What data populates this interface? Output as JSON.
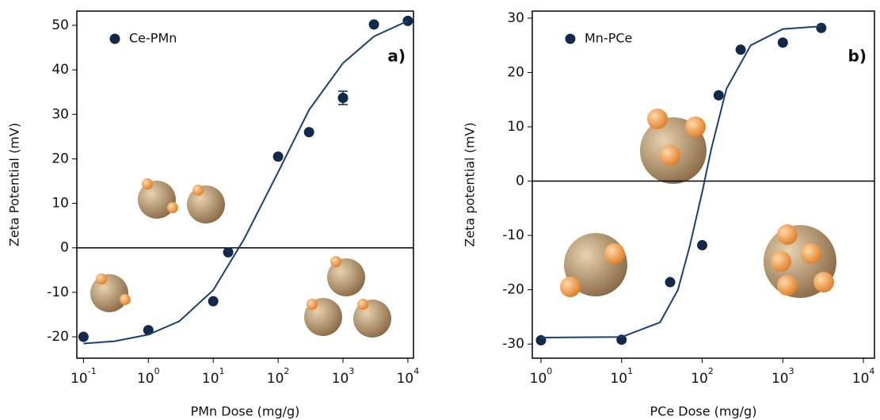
{
  "chart_data": [
    {
      "type": "scatter",
      "panel_label": "a)",
      "xlabel": "PMn Dose (mg/g)",
      "ylabel": "Zeta Potential (mV)",
      "xscale": "log",
      "xlim": [
        0.079,
        12200
      ],
      "ylim": [
        -24.8,
        53.2
      ],
      "xticks": [
        {
          "value": 0.1,
          "label": "10",
          "sup": "-1"
        },
        {
          "value": 1,
          "label": "10",
          "sup": "0"
        },
        {
          "value": 10,
          "label": "10",
          "sup": "1"
        },
        {
          "value": 100,
          "label": "10",
          "sup": "2"
        },
        {
          "value": 1000,
          "label": "10",
          "sup": "3"
        },
        {
          "value": 10000,
          "label": "10",
          "sup": "4"
        }
      ],
      "yticks": [
        -20,
        -10,
        0,
        10,
        20,
        30,
        40,
        50
      ],
      "hlines": [
        0
      ],
      "series": [
        {
          "name": "Ce-PMn",
          "color": "#13294b",
          "x": [
            0.1,
            1,
            10,
            17,
            100,
            300,
            1000,
            3000,
            10000
          ],
          "values": [
            -20,
            -18.5,
            -12,
            -1,
            20.5,
            26,
            33.7,
            50.2,
            51
          ],
          "errors": [
            null,
            null,
            null,
            null,
            null,
            null,
            1.5,
            null,
            null
          ]
        },
        {
          "type": "line",
          "color": "#1b3f73",
          "x": [
            0.1,
            0.3,
            1,
            3,
            10,
            30,
            100,
            300,
            1000,
            3000,
            10000
          ],
          "values": [
            -21.5,
            -21,
            -19.5,
            -16.5,
            -9.5,
            2,
            17,
            31,
            41.5,
            47.5,
            51
          ]
        }
      ]
    },
    {
      "type": "scatter",
      "panel_label": "b)",
      "xlabel": "PCe Dose (mg/g)",
      "ylabel": "Zeta potential (mV)",
      "xscale": "log",
      "xlim": [
        0.78,
        13700
      ],
      "ylim": [
        -32.6,
        31.3
      ],
      "xticks": [
        {
          "value": 1,
          "label": "10",
          "sup": "0"
        },
        {
          "value": 10,
          "label": "10",
          "sup": "1"
        },
        {
          "value": 100,
          "label": "10",
          "sup": "2"
        },
        {
          "value": 1000,
          "label": "10",
          "sup": "3"
        },
        {
          "value": 10000,
          "label": "10",
          "sup": "4"
        }
      ],
      "yticks": [
        -30,
        -20,
        -10,
        0,
        10,
        20,
        30
      ],
      "hlines": [
        0
      ],
      "series": [
        {
          "name": "Mn-PCe",
          "color": "#13294b",
          "x": [
            1,
            10,
            40,
            100,
            160,
            300,
            1000,
            3000
          ],
          "values": [
            -29.3,
            -29.2,
            -18.6,
            -11.8,
            15.8,
            24.2,
            25.5,
            28.2
          ]
        },
        {
          "type": "line",
          "color": "#1b3f73",
          "x": [
            1,
            10,
            30,
            50,
            70,
            100,
            130,
            200,
            400,
            1000,
            3000
          ],
          "values": [
            -28.8,
            -28.7,
            -26,
            -20,
            -12,
            -2,
            6,
            17,
            25,
            28,
            28.5
          ]
        }
      ]
    }
  ]
}
